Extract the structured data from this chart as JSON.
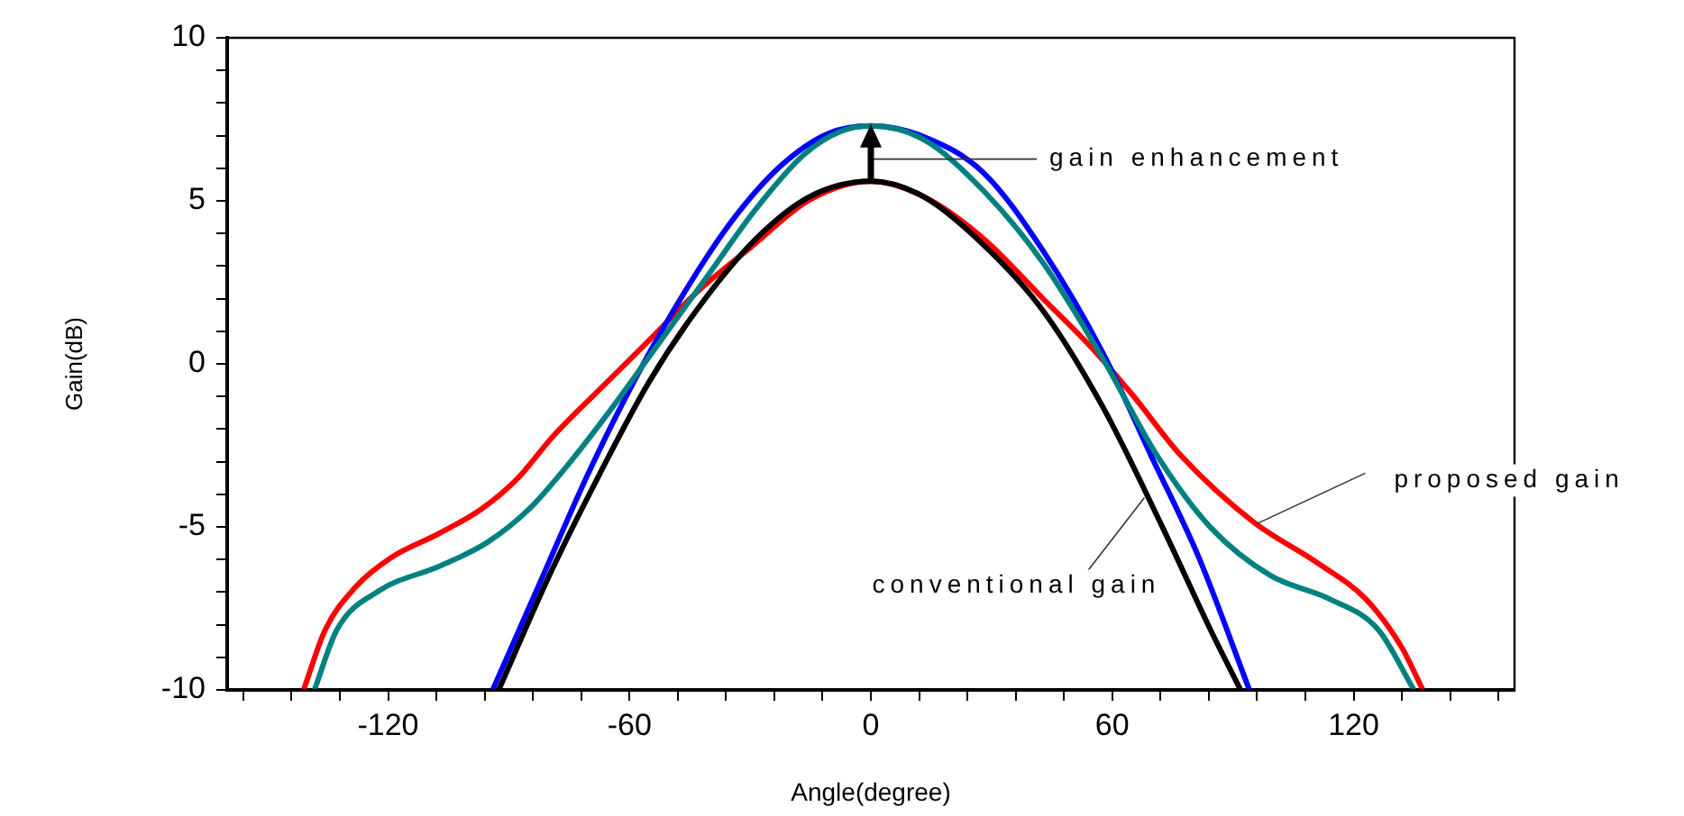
{
  "chart_data": {
    "type": "line",
    "xlabel": "Angle(degree)",
    "ylabel": "Gain(dB)",
    "marker": "none",
    "xlim": [
      -160,
      160
    ],
    "ylim": [
      -10,
      10
    ],
    "xticks": [
      {
        "value": -156,
        "label": null
      },
      {
        "value": -144,
        "label": null
      },
      {
        "value": -132,
        "label": null
      },
      -120,
      {
        "value": -108,
        "label": null
      },
      {
        "value": -96,
        "label": null
      },
      {
        "value": -84,
        "label": null
      },
      {
        "value": -72,
        "label": null
      },
      -60,
      {
        "value": -48,
        "label": null
      },
      {
        "value": -36,
        "label": null
      },
      {
        "value": -24,
        "label": null
      },
      {
        "value": -12,
        "label": null
      },
      0,
      {
        "value": 12,
        "label": null
      },
      {
        "value": 24,
        "label": null
      },
      {
        "value": 36,
        "label": null
      },
      {
        "value": 48,
        "label": null
      },
      60,
      {
        "value": 72,
        "label": null
      },
      {
        "value": 84,
        "label": null
      },
      {
        "value": 96,
        "label": null
      },
      {
        "value": 108,
        "label": null
      },
      120,
      {
        "value": 132,
        "label": null
      },
      {
        "value": 144,
        "label": null
      },
      {
        "value": 156,
        "label": null
      }
    ],
    "yticks": [
      -10,
      {
        "value": -9,
        "label": null
      },
      {
        "value": -8,
        "label": null
      },
      {
        "value": -7,
        "label": null
      },
      {
        "value": -6,
        "label": null
      },
      -5,
      {
        "value": -4,
        "label": null
      },
      {
        "value": -3,
        "label": null
      },
      {
        "value": -2,
        "label": null
      },
      {
        "value": -1,
        "label": null
      },
      0,
      {
        "value": 1,
        "label": null
      },
      {
        "value": 2,
        "label": null
      },
      {
        "value": 3,
        "label": null
      },
      {
        "value": 4,
        "label": null
      },
      5,
      {
        "value": 6,
        "label": null
      },
      {
        "value": 7,
        "label": null
      },
      {
        "value": 8,
        "label": null
      },
      {
        "value": 9,
        "label": null
      },
      10
    ],
    "series": [
      {
        "color": "#008080",
        "x": [
          -138.3,
          -132.7,
          -122.1,
          -107.3,
          -95.4,
          -85,
          -74.6,
          -64.2,
          -52.3,
          -40.4,
          -28.5,
          -16.6,
          -7.7,
          0,
          13.1,
          28,
          42.8,
          57.7,
          71.1,
          84.4,
          99.3,
          114.2,
          126.1,
          135
        ],
        "values": [
          -10,
          -8.15,
          -6.95,
          -6.21,
          -5.48,
          -4.46,
          -2.99,
          -1.33,
          0.7,
          2.73,
          4.76,
          6.42,
          7.12,
          7.3,
          6.88,
          5.31,
          3.1,
          0.15,
          -2.8,
          -5.01,
          -6.49,
          -7.22,
          -8.15,
          -10
        ]
      },
      {
        "color": "#000000",
        "x": [
          -92.5,
          -79.2,
          -67.3,
          -55.3,
          -43.4,
          -28.5,
          -15.2,
          0,
          13.1,
          28,
          42.8,
          57.7,
          72.5,
          84.4,
          91.9
        ],
        "values": [
          -10,
          -6.3,
          -3.35,
          -0.59,
          1.63,
          3.84,
          5.13,
          5.6,
          5.13,
          3.65,
          1.63,
          -1.33,
          -5.01,
          -8.15,
          -10
        ]
      },
      {
        "color": "#0000ff",
        "x": [
          -94,
          -82.1,
          -70.2,
          -58.3,
          -46.4,
          -34.5,
          -22.6,
          -10.7,
          0,
          13.1,
          28,
          42.8,
          57.7,
          69.6,
          81.5,
          94.1
        ],
        "values": [
          -10,
          -6.67,
          -3.35,
          -0.4,
          2.18,
          4.39,
          6.05,
          7.06,
          7.3,
          6.97,
          5.86,
          3.47,
          0.33,
          -2.8,
          -5.93,
          -10
        ]
      },
      {
        "color": "#ff0000",
        "x": [
          -141,
          -135.6,
          -128.2,
          -119.2,
          -107.3,
          -96.9,
          -88,
          -79.2,
          -67.3,
          -55.3,
          -43.4,
          -30,
          -15.2,
          0,
          13.1,
          28,
          42.8,
          54.7,
          65.1,
          77,
          94.9,
          111.2,
          123.1,
          132,
          137.2
        ],
        "values": [
          -10,
          -8.15,
          -6.86,
          -5.94,
          -5.2,
          -4.46,
          -3.54,
          -2.25,
          -0.77,
          0.7,
          2.18,
          3.56,
          5.03,
          5.6,
          5.13,
          3.84,
          2,
          0.52,
          -0.96,
          -2.8,
          -4.83,
          -6.12,
          -7.22,
          -8.7,
          -10
        ]
      }
    ],
    "annotations": [
      "gain enhancement",
      {
        "text": "proposed gain",
        "x": 96,
        "y": -4.9
      },
      {
        "text": "conventional gain",
        "x": 68,
        "y": -4.1
      }
    ]
  }
}
